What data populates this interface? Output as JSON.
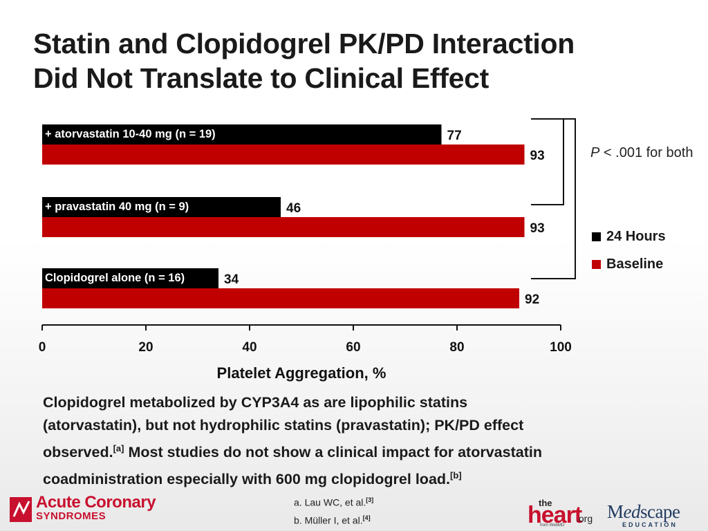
{
  "title_lines": [
    "Statin and Clopidogrel PK/PD Interaction",
    "Did Not Translate to Clinical Effect"
  ],
  "chart_data": {
    "type": "bar",
    "orientation": "horizontal",
    "categories": [
      "+ atorvastatin 10-40 mg (n = 19)",
      "+ pravastatin 40 mg (n = 9)",
      "Clopidogrel alone (n = 16)"
    ],
    "series": [
      {
        "name": "24 Hours",
        "color": "#000000",
        "values": [
          77,
          46,
          34
        ]
      },
      {
        "name": "Baseline",
        "color": "#c00000",
        "values": [
          93,
          93,
          92
        ]
      }
    ],
    "xlabel": "Platelet Aggregation, %",
    "xlim": [
      0,
      100
    ],
    "xticks": [
      0,
      20,
      40,
      60,
      80,
      100
    ],
    "legend_position": "right",
    "annotation": {
      "prefix": "P",
      "text": " < .001 for both"
    }
  },
  "footer": {
    "line1": "Clopidogrel metabolized by CYP3A4 as are lipophilic statins",
    "line2": "(atorvastatin), but not hydrophilic statins (pravastatin); PK/PD effect",
    "line3_a": "observed.",
    "sup_a": "[a]",
    "line3_b": " Most studies do not show a clinical impact for atorvastatin",
    "line4": "coadministration especially with 600 mg clopidogrel load.",
    "sup_b": "[b]"
  },
  "references": [
    {
      "text": "a. Lau WC, et al.",
      "sup": "[3]"
    },
    {
      "text": "b. Müller I, et al.",
      "sup": "[4]"
    }
  ],
  "logos": {
    "acs_line1": "Acute Coronary",
    "acs_line2": "SYNDROMES",
    "heart_the": "the",
    "heart_main": "heart",
    "heart_org": ".org",
    "heart_from": "from WebMD",
    "medscape_main_pre": "M",
    "medscape_main_ed": "ed",
    "medscape_main_post": "scape",
    "medscape_sub": "EDUCATION"
  }
}
